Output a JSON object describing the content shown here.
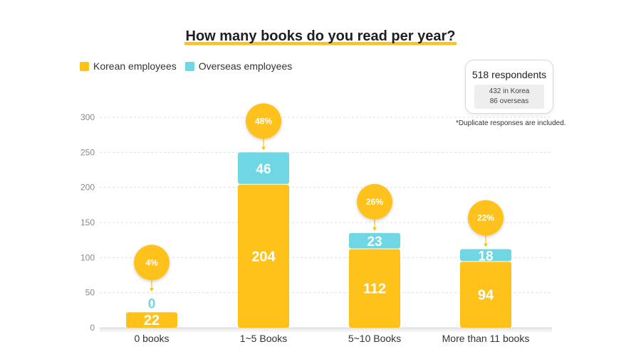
{
  "title": "How many books do you read per year?",
  "legend": {
    "korean": "Korean employees",
    "overseas": "Overseas employees"
  },
  "respondents": {
    "total": "518 respondents",
    "korea": "432 in Korea",
    "overseas": "86 overseas"
  },
  "note": "*Duplicate responses are included.",
  "colors": {
    "korean": "#ffc21b",
    "overseas": "#6fd6e4",
    "title_underline": "#ffc21b",
    "grid": "#dddddd"
  },
  "chart_data": {
    "type": "bar",
    "stacked": true,
    "categories": [
      "0 books",
      "1~5 Books",
      "5~10 Books",
      "More than 11 books"
    ],
    "series": [
      {
        "name": "Korean employees",
        "values": [
          22,
          204,
          112,
          94
        ]
      },
      {
        "name": "Overseas employees",
        "values": [
          0,
          46,
          23,
          18
        ]
      }
    ],
    "percent_labels": [
      "4%",
      "48%",
      "26%",
      "22%"
    ],
    "yticks": [
      0,
      50,
      100,
      150,
      200,
      250,
      300
    ],
    "ylim": [
      0,
      300
    ],
    "grid": true,
    "legend_position": "top-left"
  }
}
